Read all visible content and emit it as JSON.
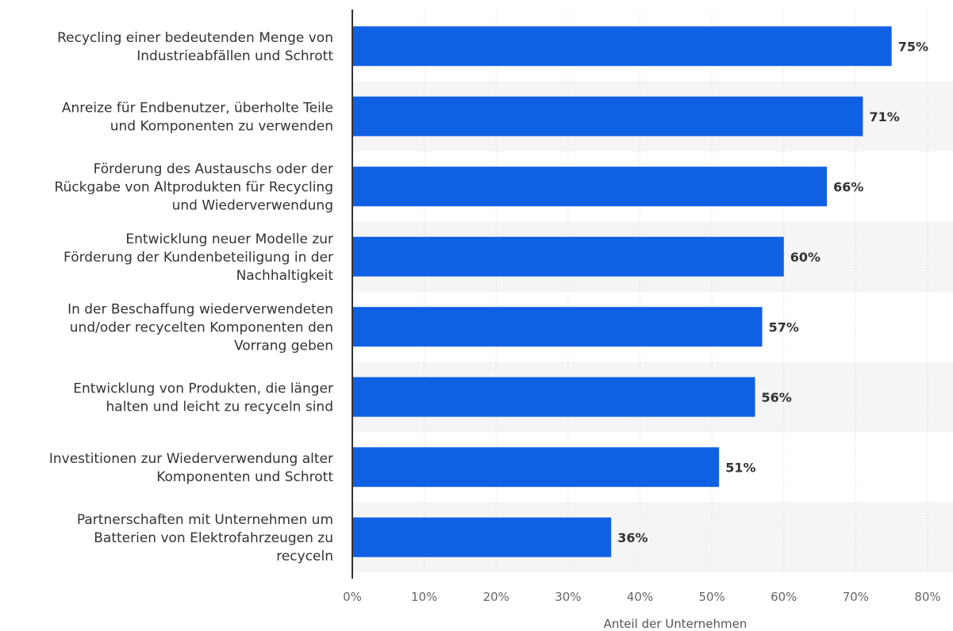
{
  "chart_data": {
    "type": "bar",
    "orientation": "horizontal",
    "categories": [
      [
        "Recycling einer bedeutenden Menge von",
        "Industrieabfällen und Schrott"
      ],
      [
        "Anreize für Endbenutzer, überholte Teile",
        "und Komponenten zu verwenden"
      ],
      [
        "Förderung des Austauschs oder der",
        "Rückgabe von Altprodukten für Recycling",
        "und Wiederverwendung"
      ],
      [
        "Entwicklung neuer Modelle zur",
        "Förderung der Kundenbeteiligung in der",
        "Nachhaltigkeit"
      ],
      [
        "In der Beschaffung wiederverwendeten",
        "und/oder recycelten Komponenten den",
        "Vorrang geben"
      ],
      [
        "Entwicklung von Produkten, die länger",
        "halten und leicht zu recyceln sind"
      ],
      [
        "Investitionen zur Wiederverwendung alter",
        "Komponenten und Schrott"
      ],
      [
        "Partnerschaften mit Unternehmen um",
        "Batterien von Elektrofahrzeugen zu",
        "recyceln"
      ]
    ],
    "values": [
      75,
      71,
      66,
      60,
      57,
      56,
      51,
      36
    ],
    "value_labels": [
      "75%",
      "71%",
      "66%",
      "60%",
      "57%",
      "56%",
      "51%",
      "36%"
    ],
    "xlabel": "Anteil der Unternehmen",
    "ylabel": "",
    "xlim": [
      0,
      80
    ],
    "ticks": [
      0,
      10,
      20,
      30,
      40,
      50,
      60,
      70,
      80
    ],
    "tick_labels": [
      "0%",
      "10%",
      "20%",
      "30%",
      "40%",
      "50%",
      "60%",
      "70%",
      "80%"
    ],
    "grid": "vertical-dotted",
    "legend": "none",
    "colors": {
      "bar": "#1060e4",
      "band": "#f5f5f5",
      "grid": "#cccccc",
      "axis": "#333333"
    }
  }
}
